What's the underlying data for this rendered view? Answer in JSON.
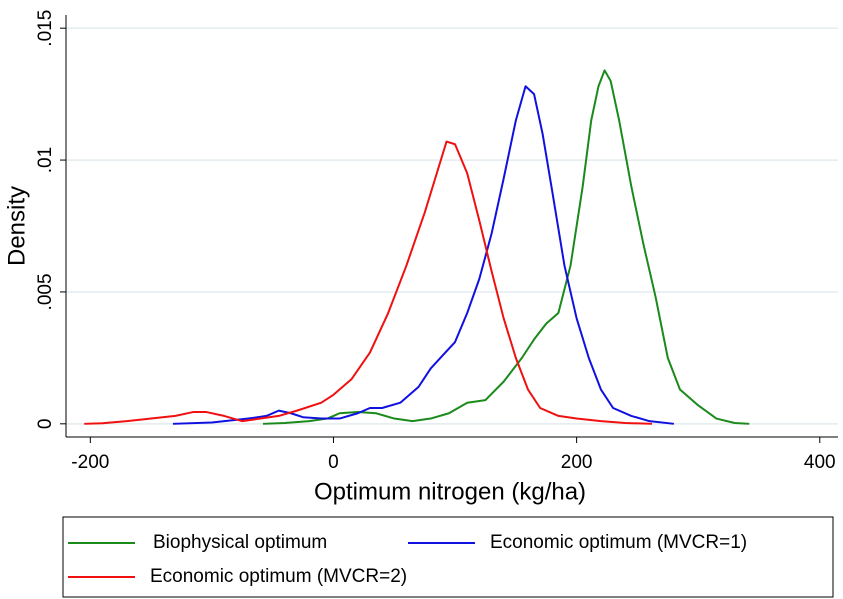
{
  "chart_data": {
    "type": "line",
    "xlabel": "Optimum nitrogen (kg/ha)",
    "ylabel": "Density",
    "xlim": [
      -220,
      415
    ],
    "ylim": [
      -0.0005,
      0.0155
    ],
    "xticks": [
      -200,
      0,
      200,
      400
    ],
    "yticks": [
      0,
      {
        "value": 0.005,
        "label": ".005"
      },
      {
        "value": 0.01,
        "label": ".01"
      },
      {
        "value": 0.015,
        "label": ".015"
      }
    ],
    "grid": true,
    "legend": "bottom",
    "series": [
      {
        "name": "Biophysical optimum",
        "color": "#1a8a1a",
        "x": [
          -58,
          -40,
          -20,
          -5,
          0,
          5,
          20,
          35,
          50,
          65,
          80,
          95,
          110,
          125,
          140,
          155,
          165,
          175,
          185,
          195,
          205,
          212,
          218,
          223,
          228,
          235,
          245,
          255,
          265,
          275,
          285,
          300,
          315,
          330,
          342
        ],
        "values": [
          0,
          3e-05,
          0.0001,
          0.0002,
          0.0003,
          0.0004,
          0.00045,
          0.0004,
          0.0002,
          0.0001,
          0.0002,
          0.0004,
          0.0008,
          0.0009,
          0.0016,
          0.0025,
          0.0032,
          0.0038,
          0.0042,
          0.006,
          0.009,
          0.0115,
          0.0128,
          0.0134,
          0.013,
          0.0115,
          0.009,
          0.0068,
          0.0048,
          0.0025,
          0.0013,
          0.0007,
          0.0002,
          3e-05,
          0
        ]
      },
      {
        "name": "Economic optimum (MVCR=1)",
        "color": "#1010e0",
        "x": [
          -132,
          -100,
          -70,
          -55,
          -45,
          -35,
          -25,
          -10,
          5,
          20,
          30,
          40,
          55,
          70,
          80,
          90,
          100,
          110,
          120,
          130,
          140,
          150,
          158,
          165,
          172,
          180,
          190,
          200,
          210,
          220,
          230,
          245,
          260,
          280
        ],
        "values": [
          0,
          5e-05,
          0.0002,
          0.0003,
          0.0005,
          0.0004,
          0.00025,
          0.0002,
          0.0002,
          0.0004,
          0.0006,
          0.0006,
          0.0008,
          0.0014,
          0.0021,
          0.0026,
          0.0031,
          0.0042,
          0.0055,
          0.0072,
          0.0093,
          0.0115,
          0.0128,
          0.0125,
          0.011,
          0.0088,
          0.006,
          0.004,
          0.0025,
          0.0013,
          0.0006,
          0.0003,
          0.0001,
          0
        ]
      },
      {
        "name": "Economic optimum (MVCR=2)",
        "color": "#f01010",
        "x": [
          -205,
          -190,
          -170,
          -150,
          -130,
          -115,
          -105,
          -90,
          -75,
          -60,
          -45,
          -30,
          -10,
          0,
          15,
          30,
          45,
          60,
          75,
          85,
          93,
          100,
          110,
          120,
          130,
          140,
          150,
          160,
          170,
          185,
          200,
          220,
          240,
          262
        ],
        "values": [
          0,
          2e-05,
          0.0001,
          0.0002,
          0.0003,
          0.00045,
          0.00045,
          0.0003,
          0.0001,
          0.0002,
          0.0003,
          0.0005,
          0.0008,
          0.0011,
          0.0017,
          0.0027,
          0.0042,
          0.006,
          0.008,
          0.0095,
          0.0107,
          0.0106,
          0.0095,
          0.0077,
          0.0058,
          0.004,
          0.0025,
          0.0013,
          0.0006,
          0.0003,
          0.0002,
          0.0001,
          3e-05,
          0
        ]
      }
    ]
  }
}
